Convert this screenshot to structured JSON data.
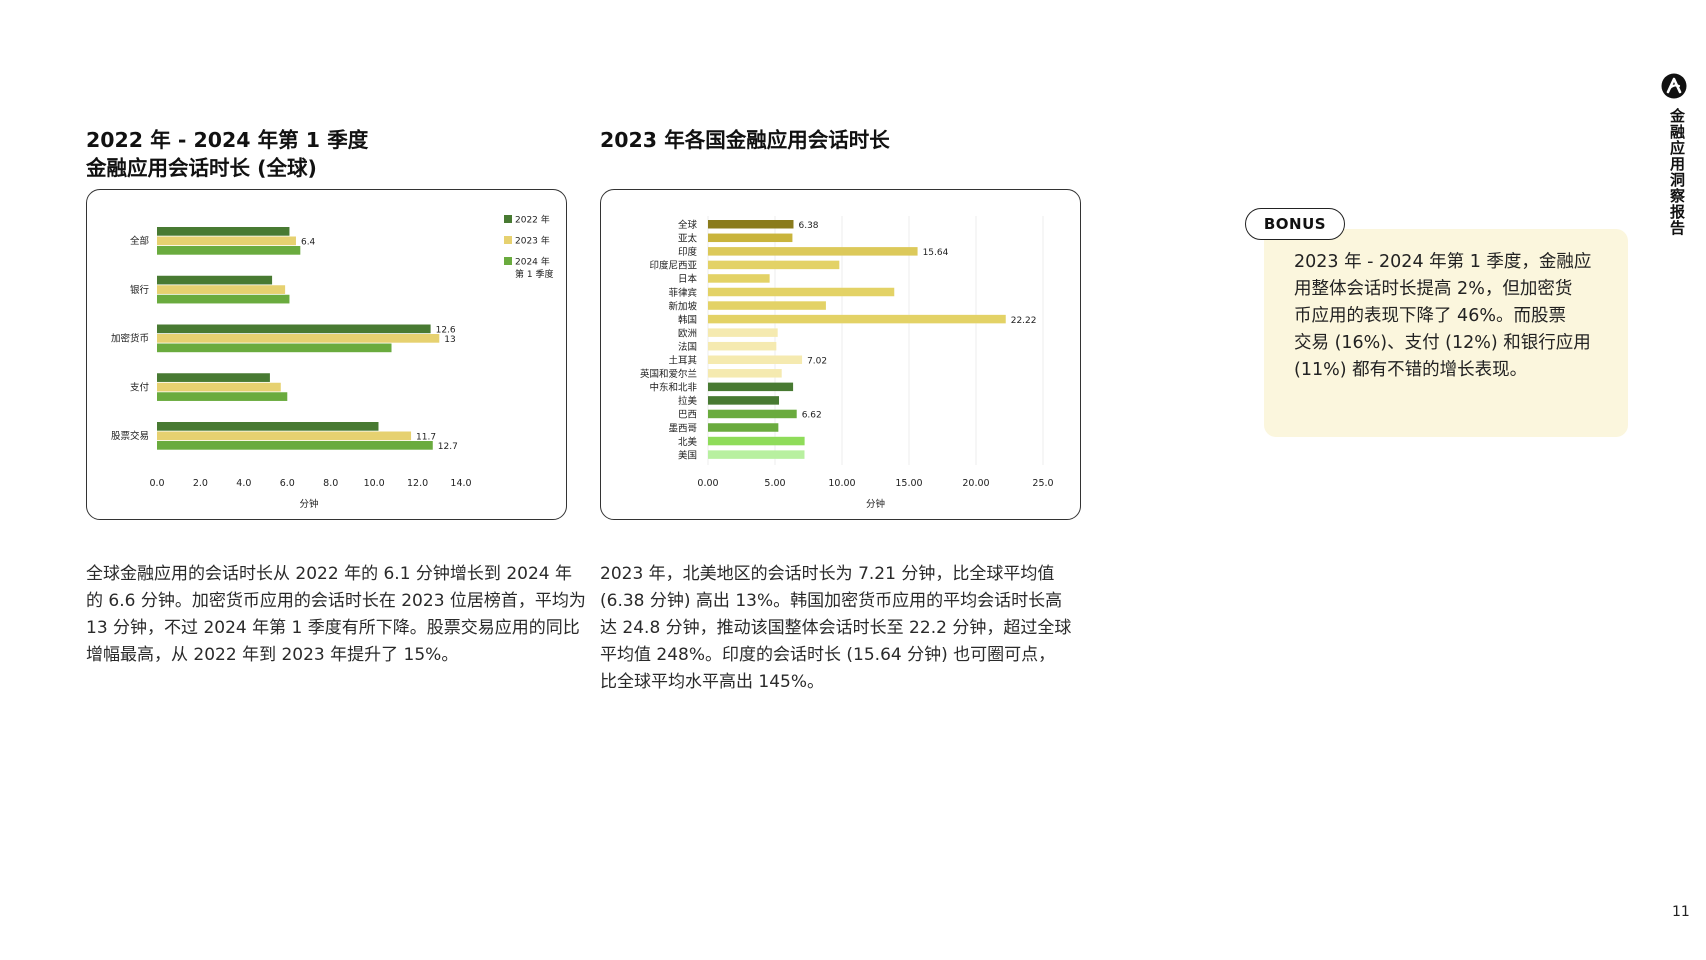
{
  "page": {
    "side_label": "金融应用洞察报告",
    "page_number": "11"
  },
  "left": {
    "title_lines": [
      "2022 年 - 2024 年第 1 季度",
      "金融应用会话时长 (全球)"
    ],
    "body_lines": [
      "全球金融应用的会话时长从 2022 年的 6.1 分钟增长到 2024 年",
      "的 6.6 分钟。加密货币应用的会话时长在 2023 位居榜首，平均为",
      "13 分钟，不过 2024 年第 1 季度有所下降。股票交易应用的同比",
      "增幅最高，从 2022 年到 2023 年提升了 15%。"
    ]
  },
  "middle": {
    "title_lines": [
      "2023 年各国金融应用会话时长"
    ],
    "body_lines": [
      "2023 年，北美地区的会话时长为 7.21 分钟，比全球平均值",
      "(6.38 分钟) 高出 13%。韩国加密货币应用的平均会话时长高",
      "达 24.8 分钟，推动该国整体会话时长至 22.2 分钟，超过全球",
      "平均值 248%。印度的会话时长 (15.64 分钟) 也可圈可点，",
      "比全球平均水平高出 145%。"
    ]
  },
  "bonus": {
    "label": "BONUS",
    "lines": [
      "2023 年 - 2024 年第 1 季度，金融应",
      "用整体会话时长提高 2%，但加密货",
      "币应用的表现下降了 46%。而股票",
      "交易 (16%)、支付 (12%) 和银行应用",
      "(11%) 都有不错的增长表现。"
    ]
  },
  "chart_data": [
    {
      "type": "bar",
      "orientation": "horizontal",
      "categories": [
        "全部",
        "银行",
        "加密货币",
        "支付",
        "股票交易"
      ],
      "series": [
        {
          "name": "2022 年",
          "values": [
            6.1,
            5.3,
            12.6,
            5.2,
            10.2
          ],
          "color": "#487a32"
        },
        {
          "name": "2023 年",
          "values": [
            6.4,
            5.9,
            13,
            5.7,
            11.7
          ],
          "color": "#e6d170"
        },
        {
          "name": "2024 年\n第 1 季度",
          "values": [
            6.6,
            6.1,
            10.8,
            6.0,
            12.7
          ],
          "color": "#6aab3e"
        }
      ],
      "data_labels": [
        {
          "series": 1,
          "index": 0,
          "text": "6.4"
        },
        {
          "series": 0,
          "index": 2,
          "text": "12.6"
        },
        {
          "series": 1,
          "index": 2,
          "text": "13"
        },
        {
          "series": 1,
          "index": 4,
          "text": "11.7"
        },
        {
          "series": 2,
          "index": 4,
          "text": "12.7"
        }
      ],
      "legend": [
        "2022 年",
        "2023 年",
        "2024 年",
        "第 1 季度"
      ],
      "xlim": [
        0,
        14
      ],
      "xticks": [
        "0.0",
        "2.0",
        "4.0",
        "6.0",
        "8.0",
        "10.0",
        "12.0",
        "14.0"
      ],
      "xlabel": "分钟",
      "ylabel": "",
      "legend_position": "top-right",
      "grid": false
    },
    {
      "type": "bar",
      "orientation": "horizontal",
      "categories": [
        "全球",
        "亚太",
        "印度",
        "印度尼西亚",
        "日本",
        "菲律宾",
        "新加坡",
        "韩国",
        "欧洲",
        "法国",
        "土耳其",
        "英国和爱尔兰",
        "中东和北非",
        "拉美",
        "巴西",
        "墨西哥",
        "北美",
        "美国"
      ],
      "values": [
        6.38,
        6.3,
        15.64,
        9.8,
        4.6,
        13.9,
        8.8,
        22.22,
        5.2,
        5.1,
        7.02,
        5.5,
        6.35,
        5.3,
        6.62,
        5.25,
        7.21,
        7.2
      ],
      "colors": [
        "#8a7b1c",
        "#c9b43c",
        "#dcc95a",
        "#e3d266",
        "#e3d266",
        "#e3d266",
        "#e3d266",
        "#e3d266",
        "#f5eab0",
        "#f5eab0",
        "#f5eab0",
        "#f5eab0",
        "#487a32",
        "#487a32",
        "#6aab3e",
        "#6aab3e",
        "#8fdc5a",
        "#b8f0a0"
      ],
      "data_labels": [
        {
          "index": 0,
          "text": "6.38"
        },
        {
          "index": 2,
          "text": "15.64"
        },
        {
          "index": 7,
          "text": "22.22"
        },
        {
          "index": 10,
          "text": "7.02"
        },
        {
          "index": 14,
          "text": "6.62"
        }
      ],
      "xlim": [
        0,
        25
      ],
      "xticks": [
        "0.00",
        "5.00",
        "10.00",
        "15.00",
        "20.00",
        "25.0"
      ],
      "xlabel": "分钟",
      "ylabel": "",
      "grid": true
    }
  ]
}
